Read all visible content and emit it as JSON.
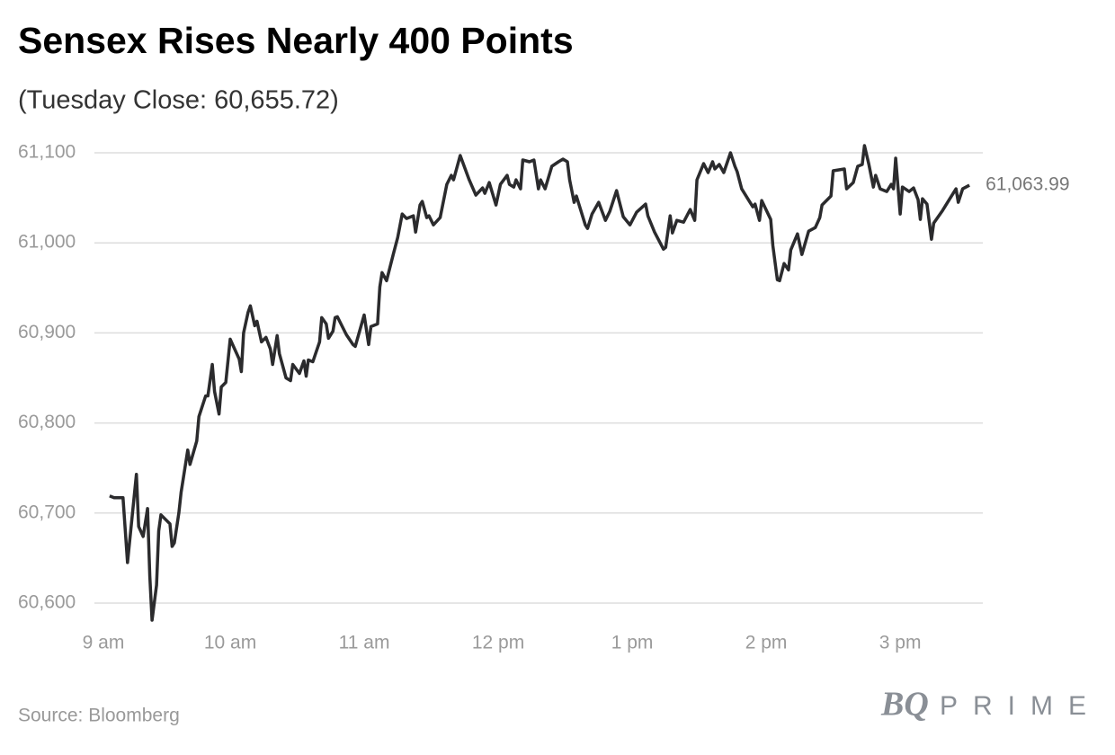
{
  "chart_data": {
    "type": "line",
    "title": "Sensex Rises Nearly 400 Points",
    "subtitle": "(Tuesday Close: 60,655.72)",
    "source": "Source: Bloomberg",
    "brand": {
      "mark": "BQ",
      "name": "PRIME"
    },
    "x": [
      546,
      548,
      552,
      554,
      558,
      559,
      561,
      563,
      564,
      565,
      567,
      568,
      569,
      573,
      574,
      575,
      577,
      578,
      581,
      582,
      585,
      586,
      589,
      590,
      592,
      593,
      595,
      596,
      598,
      600,
      604,
      605,
      606,
      608,
      609,
      611,
      612,
      614,
      616,
      618,
      619,
      621,
      622,
      625,
      627,
      628,
      631,
      633,
      634,
      635,
      637,
      640,
      641,
      643,
      644,
      646,
      647,
      648,
      652,
      655,
      656,
      660,
      662,
      663,
      666,
      667,
      668,
      670,
      673,
      675,
      677,
      679,
      682,
      683,
      685,
      686,
      688,
      689,
      691,
      694,
      697,
      699,
      700,
      703,
      707,
      710,
      713,
      714,
      716,
      719,
      721,
      724,
      725,
      727,
      728,
      730,
      731,
      734,
      736,
      738,
      739,
      741,
      744,
      747,
      749,
      751,
      752,
      754,
      755,
      759,
      760,
      762,
      765,
      768,
      770,
      773,
      774,
      776,
      779,
      782,
      786,
      787,
      790,
      794,
      795,
      797,
      798,
      800,
      803,
      806,
      808,
      809,
      812,
      814,
      816,
      817,
      819,
      821,
      824,
      826,
      827,
      829,
      832,
      834,
      835,
      837,
      838,
      842,
      843,
      845,
      846,
      848,
      850,
      851,
      854,
      856,
      859,
      862,
      864,
      865,
      869,
      870,
      875,
      876,
      879,
      881,
      883,
      884,
      886,
      888,
      889,
      891,
      894,
      896,
      897,
      898,
      900,
      901,
      904,
      906,
      908,
      909,
      910,
      912,
      914,
      915,
      919,
      922,
      925,
      926,
      928,
      931
    ],
    "series": [
      {
        "name": "Sensex",
        "color": "#2b2b2d",
        "values": [
          60719,
          60717,
          60717,
          60645,
          60743,
          60685,
          60674,
          60705,
          60630,
          60581,
          60620,
          60680,
          60698,
          60688,
          60663,
          60667,
          60700,
          60723,
          60770,
          60754,
          60780,
          60807,
          60830,
          60830,
          60865,
          60835,
          60810,
          60840,
          60845,
          60893,
          60871,
          60857,
          60900,
          60923,
          60930,
          60908,
          60913,
          60890,
          60895,
          60882,
          60865,
          60897,
          60877,
          60850,
          60847,
          60865,
          60855,
          60869,
          60852,
          60870,
          60868,
          60890,
          60917,
          60910,
          60894,
          60902,
          60917,
          60918,
          60898,
          60887,
          60885,
          60920,
          60887,
          60907,
          60910,
          60951,
          60967,
          60958,
          60987,
          61006,
          61032,
          61027,
          61030,
          61012,
          61042,
          61046,
          61028,
          61030,
          61020,
          61028,
          61065,
          61075,
          61070,
          61097,
          61070,
          61053,
          61061,
          61055,
          61067,
          61042,
          61065,
          61075,
          61065,
          61062,
          61070,
          61060,
          61092,
          61090,
          61092,
          61060,
          61070,
          61060,
          61085,
          61090,
          61093,
          61090,
          61070,
          61045,
          61052,
          61020,
          61016,
          61032,
          61045,
          61025,
          61035,
          61058,
          61048,
          61029,
          61020,
          61034,
          61043,
          61030,
          61012,
          60993,
          60995,
          61030,
          61011,
          61025,
          61023,
          61037,
          61025,
          61070,
          61088,
          61078,
          61090,
          61082,
          61087,
          61078,
          61100,
          61085,
          61079,
          61060,
          61048,
          61040,
          61043,
          61025,
          61047,
          61026,
          60997,
          60959,
          60958,
          60977,
          60970,
          60992,
          61010,
          60987,
          61013,
          61017,
          61028,
          61042,
          61052,
          61080,
          61082,
          61060,
          61067,
          61085,
          61087,
          61108,
          61087,
          61062,
          61075,
          61060,
          61057,
          61065,
          61060,
          61094,
          61032,
          61062,
          61057,
          61061,
          61048,
          61026,
          61049,
          61043,
          61004,
          61022,
          61036,
          61048,
          61060,
          61045,
          61060,
          61063.99
        ]
      }
    ],
    "end_label": "61,063.99",
    "xlim": [
      540,
      937
    ],
    "xticks": [
      {
        "value": 540,
        "label": "9 am"
      },
      {
        "value": 600,
        "label": "10 am"
      },
      {
        "value": 660,
        "label": "11 am"
      },
      {
        "value": 720,
        "label": "12 pm"
      },
      {
        "value": 780,
        "label": "1 pm"
      },
      {
        "value": 840,
        "label": "2 pm"
      },
      {
        "value": 900,
        "label": "3 pm"
      }
    ],
    "ylim": [
      60600,
      61100
    ],
    "yticks": [
      {
        "value": 60600,
        "label": "60,600"
      },
      {
        "value": 60700,
        "label": "60,700"
      },
      {
        "value": 60800,
        "label": "60,800"
      },
      {
        "value": 60900,
        "label": "60,900"
      },
      {
        "value": 61000,
        "label": "61,000"
      },
      {
        "value": 61100,
        "label": "61,100"
      }
    ],
    "grid": true
  }
}
